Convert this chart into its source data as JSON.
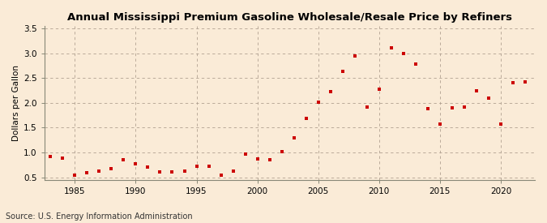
{
  "title": "Annual Mississippi Premium Gasoline Wholesale/Resale Price by Refiners",
  "ylabel": "Dollars per Gallon",
  "source": "Source: U.S. Energy Information Administration",
  "background_color": "#faebd7",
  "marker_color": "#cc0000",
  "xlim": [
    1982.5,
    2022.8
  ],
  "ylim": [
    0.45,
    3.55
  ],
  "xticks": [
    1985,
    1990,
    1995,
    2000,
    2005,
    2010,
    2015,
    2020
  ],
  "yticks": [
    0.5,
    1.0,
    1.5,
    2.0,
    2.5,
    3.0,
    3.5
  ],
  "years": [
    1983,
    1984,
    1985,
    1986,
    1987,
    1988,
    1989,
    1990,
    1991,
    1992,
    1993,
    1994,
    1995,
    1996,
    1997,
    1998,
    1999,
    2000,
    2001,
    2002,
    2003,
    2004,
    2005,
    2006,
    2007,
    2008,
    2009,
    2010,
    2011,
    2012,
    2013,
    2014,
    2015,
    2016,
    2017,
    2018,
    2019,
    2020,
    2021,
    2022
  ],
  "values": [
    0.92,
    0.88,
    0.55,
    0.6,
    0.62,
    0.67,
    0.85,
    0.77,
    0.7,
    0.61,
    0.61,
    0.63,
    0.72,
    0.73,
    0.55,
    0.63,
    0.97,
    0.87,
    0.86,
    1.01,
    1.3,
    1.68,
    2.01,
    2.22,
    2.63,
    2.95,
    1.92,
    2.27,
    3.11,
    3.0,
    2.78,
    1.88,
    1.57,
    1.9,
    1.92,
    2.24,
    2.09,
    1.57,
    2.4,
    2.42
  ]
}
